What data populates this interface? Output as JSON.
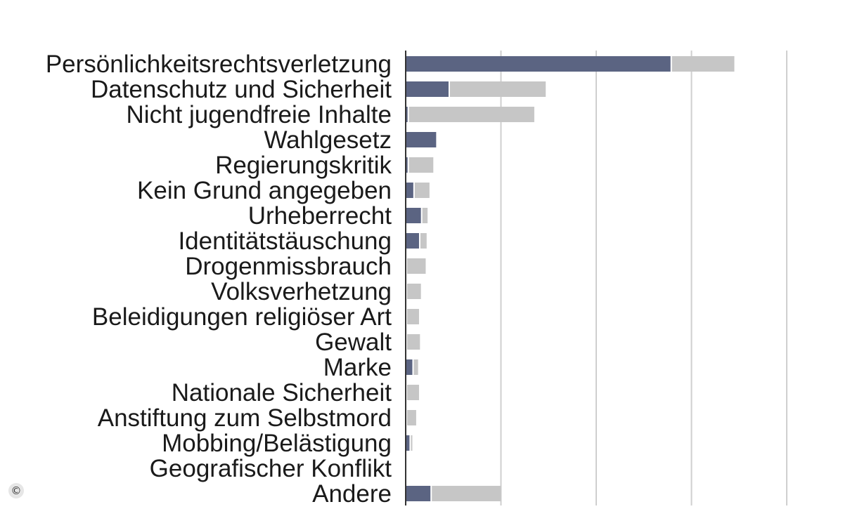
{
  "chart_data": {
    "type": "bar",
    "orientation": "horizontal",
    "stacked": true,
    "categories": [
      "Persönlichkeitsrechtsverletzung",
      "Datenschutz und Sicherheit",
      "Nicht jugendfreie Inhalte",
      "Wahlgesetz",
      "Regierungskritik",
      "Kein Grund angegeben",
      "Urheberrecht",
      "Identitätstäuschung",
      "Drogenmissbrauch",
      "Volksverhetzung",
      "Beleidigungen religiöser Art",
      "Gewalt",
      "Marke",
      "Nationale Sicherheit",
      "Anstiftung zum Selbstmord",
      "Mobbing/Belästigung",
      "Geografischer Konflikt",
      "Andere"
    ],
    "series": [
      {
        "color": "#5b6482",
        "values": [
          278,
          45,
          2,
          32,
          2,
          8,
          16,
          14,
          0,
          0,
          0,
          0,
          7,
          0,
          0,
          4,
          0,
          26
        ]
      },
      {
        "color": "#c6c6c6",
        "values": [
          67,
          102,
          133,
          0,
          27,
          17,
          7,
          8,
          21,
          16,
          14,
          15,
          6,
          14,
          11,
          3,
          0,
          74
        ]
      }
    ],
    "xlim": [
      0,
      400
    ],
    "x_gridlines": [
      100,
      200,
      300,
      400
    ],
    "grid": "vertical",
    "title": "",
    "xlabel": "",
    "ylabel": ""
  },
  "watermark": {
    "symbol": "©"
  }
}
